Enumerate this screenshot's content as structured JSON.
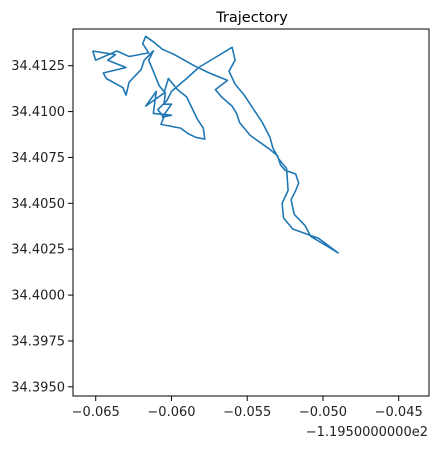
{
  "chart_data": {
    "type": "line",
    "title": "Trajectory",
    "xlabel": "",
    "ylabel": "",
    "x_offset_label": "−1.1950000000e2",
    "xlim": [
      -0.0665,
      -0.043
    ],
    "ylim": [
      34.3945,
      34.4145
    ],
    "xticks": [
      -0.065,
      -0.06,
      -0.055,
      -0.05,
      -0.045
    ],
    "xtick_labels": [
      "−0.065",
      "−0.060",
      "−0.055",
      "−0.050",
      "−0.045"
    ],
    "yticks": [
      34.395,
      34.3975,
      34.4,
      34.4025,
      34.405,
      34.4075,
      34.41,
      34.4125
    ],
    "ytick_labels": [
      "34.3950",
      "34.3975",
      "34.4000",
      "34.4025",
      "34.4050",
      "34.4075",
      "34.4100",
      "34.4125"
    ],
    "grid": false,
    "series_color": "#1f77b4",
    "x": [
      -0.0652,
      -0.0637,
      -0.0642,
      -0.063,
      -0.0645,
      -0.0643,
      -0.0632,
      -0.063,
      -0.0628,
      -0.062,
      -0.0618,
      -0.0612,
      -0.0615,
      -0.0612,
      -0.0608,
      -0.0604,
      -0.0605,
      -0.06,
      -0.0606,
      -0.06,
      -0.0612,
      -0.061,
      -0.0617,
      -0.0605,
      -0.0602,
      -0.0596,
      -0.059,
      -0.0583,
      -0.0579,
      -0.0578,
      -0.0584,
      -0.0589,
      -0.0594,
      -0.0607,
      -0.0605,
      -0.0609,
      -0.0603,
      -0.06,
      -0.059,
      -0.0582,
      -0.057,
      -0.056,
      -0.0558,
      -0.0562,
      -0.0558,
      -0.0552,
      -0.0548,
      -0.054,
      -0.0535,
      -0.0533,
      -0.0529,
      -0.0524,
      -0.0523,
      -0.0527,
      -0.0526,
      -0.052,
      -0.0503,
      -0.049,
      -0.0498,
      -0.0508,
      -0.0512,
      -0.0519,
      -0.0521,
      -0.0518,
      -0.0516,
      -0.0518,
      -0.0525,
      -0.0528,
      -0.053,
      -0.0536,
      -0.0548,
      -0.0555,
      -0.0557,
      -0.056,
      -0.0567,
      -0.0571,
      -0.0563,
      -0.0575,
      -0.0585,
      -0.0598,
      -0.0606,
      -0.0612,
      -0.0617,
      -0.0619,
      -0.0615,
      -0.0628,
      -0.0636,
      -0.065,
      -0.0652
    ],
    "y": [
      34.4133,
      34.4131,
      34.4128,
      34.4124,
      34.4121,
      34.4118,
      34.4113,
      34.4109,
      34.4116,
      34.4123,
      34.4128,
      34.4133,
      34.4128,
      34.4122,
      34.4114,
      34.411,
      34.4104,
      34.4104,
      34.4097,
      34.4098,
      34.4099,
      34.4111,
      34.4103,
      34.411,
      34.4118,
      34.4112,
      34.4108,
      34.4096,
      34.4091,
      34.4085,
      34.4086,
      34.4088,
      34.4091,
      34.4093,
      34.4097,
      34.4101,
      34.4106,
      34.4111,
      34.4118,
      34.4124,
      34.413,
      34.4135,
      34.4128,
      34.4122,
      34.4115,
      34.4109,
      34.4104,
      34.4094,
      34.4086,
      34.408,
      34.4074,
      34.4069,
      34.4057,
      34.405,
      34.4042,
      34.4036,
      34.4031,
      34.4023,
      34.4027,
      34.4032,
      34.4038,
      34.4044,
      34.4052,
      34.4057,
      34.4061,
      34.4066,
      34.4068,
      34.4071,
      34.4076,
      34.408,
      34.4087,
      34.4094,
      34.4099,
      34.4103,
      34.4108,
      34.4112,
      34.4117,
      34.4121,
      34.4125,
      34.4131,
      34.4134,
      34.4138,
      34.4141,
      34.4137,
      34.4132,
      34.413,
      34.4133,
      34.4128,
      34.4133
    ]
  }
}
